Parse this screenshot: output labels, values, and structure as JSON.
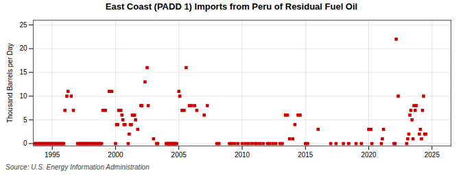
{
  "chart_data": {
    "type": "scatter",
    "title": "East Coast (PADD 1) Imports from Peru of Residual Fuel Oil",
    "ylabel": "Thousand Barrels per Day",
    "annotations": [
      "Source: U.S. Energy Information Administration"
    ],
    "color": "#cc0000",
    "marker": "square",
    "grid": true,
    "xlim": [
      1993.5,
      2026.5
    ],
    "ylim": [
      -0.5,
      26
    ],
    "xticks": [
      1995,
      2000,
      2005,
      2010,
      2015,
      2020,
      2025
    ],
    "yticks": [
      0,
      5,
      10,
      15,
      20,
      25
    ],
    "x": [
      1993.6,
      1993.7,
      1993.8,
      1993.9,
      1994.0,
      1994.1,
      1994.2,
      1994.3,
      1994.4,
      1994.5,
      1994.6,
      1994.7,
      1994.8,
      1994.9,
      1995.0,
      1995.1,
      1995.2,
      1995.3,
      1995.4,
      1995.5,
      1995.6,
      1995.7,
      1995.8,
      1995.9,
      1996.0,
      1996.15,
      1996.25,
      1996.5,
      1996.67,
      1997.0,
      1997.1,
      1997.2,
      1997.3,
      1997.4,
      1997.5,
      1997.6,
      1997.7,
      1997.8,
      1997.9,
      1998.0,
      1998.1,
      1998.2,
      1998.3,
      1998.4,
      1998.5,
      1998.6,
      1998.7,
      1998.8,
      1998.9,
      1999.0,
      1999.2,
      1999.5,
      1999.7,
      2000.0,
      2000.08,
      2000.17,
      2000.25,
      2000.42,
      2000.5,
      2000.58,
      2000.67,
      2000.75,
      2001.0,
      2001.08,
      2001.17,
      2001.25,
      2001.33,
      2001.42,
      2001.5,
      2001.58,
      2001.75,
      2002.0,
      2002.08,
      2002.33,
      2002.5,
      2002.58,
      2003.0,
      2003.25,
      2003.33,
      2004.0,
      2004.08,
      2004.17,
      2004.25,
      2004.33,
      2004.42,
      2004.5,
      2004.58,
      2004.67,
      2004.75,
      2004.83,
      2005.0,
      2005.08,
      2005.25,
      2005.42,
      2005.58,
      2005.83,
      2006.0,
      2006.25,
      2006.42,
      2007.0,
      2007.25,
      2008.0,
      2008.17,
      2009.0,
      2009.17,
      2009.42,
      2009.67,
      2010.0,
      2010.25,
      2010.5,
      2010.75,
      2011.0,
      2011.17,
      2011.42,
      2011.67,
      2012.0,
      2012.17,
      2012.42,
      2012.67,
      2013.0,
      2013.17,
      2013.42,
      2013.58,
      2013.75,
      2014.0,
      2014.17,
      2014.42,
      2014.58,
      2015.0,
      2015.17,
      2016.0,
      2017.0,
      2017.42,
      2018.0,
      2018.42,
      2019.0,
      2019.42,
      2020.0,
      2020.17,
      2020.25,
      2021.0,
      2021.08,
      2021.17,
      2022.0,
      2022.08,
      2022.17,
      2022.33,
      2023.0,
      2023.08,
      2023.17,
      2023.25,
      2023.33,
      2023.42,
      2023.5,
      2023.58,
      2023.67,
      2023.75,
      2024.0,
      2024.08,
      2024.17,
      2024.25,
      2024.33,
      2024.42,
      2024.5
    ],
    "values": [
      0,
      0,
      0,
      0,
      0,
      0,
      0,
      0,
      0,
      0,
      0,
      0,
      0,
      0,
      0,
      0,
      0,
      0,
      0,
      0,
      0,
      0,
      0,
      0,
      7,
      10,
      11,
      10,
      7,
      0,
      0,
      0,
      0,
      0,
      0,
      0,
      0,
      0,
      0,
      0,
      0,
      0,
      0,
      0,
      0,
      0,
      0,
      0,
      0,
      7,
      7,
      11,
      11,
      0,
      4,
      4,
      7,
      7,
      6,
      5,
      4,
      4,
      0,
      2,
      4,
      4,
      6,
      6,
      6,
      5,
      3,
      8,
      8,
      13,
      16,
      8,
      1,
      0,
      0,
      0,
      0,
      0,
      0,
      0,
      0,
      0,
      0,
      0,
      0,
      0,
      11,
      10,
      7,
      7,
      16,
      8,
      8,
      8,
      7,
      6,
      8,
      0,
      0,
      0,
      0,
      0,
      0,
      0,
      0,
      0,
      0,
      0,
      0,
      0,
      0,
      0,
      0,
      0,
      0,
      0,
      0,
      6,
      6,
      1,
      1,
      4,
      6,
      6,
      0,
      0,
      3,
      0,
      0,
      0,
      0,
      0,
      0,
      3,
      3,
      0,
      0,
      1,
      3,
      0,
      0,
      22,
      10,
      0,
      1,
      2,
      6,
      7,
      5,
      1,
      8,
      7,
      8,
      2,
      3,
      1,
      7,
      10,
      2,
      2
    ]
  }
}
